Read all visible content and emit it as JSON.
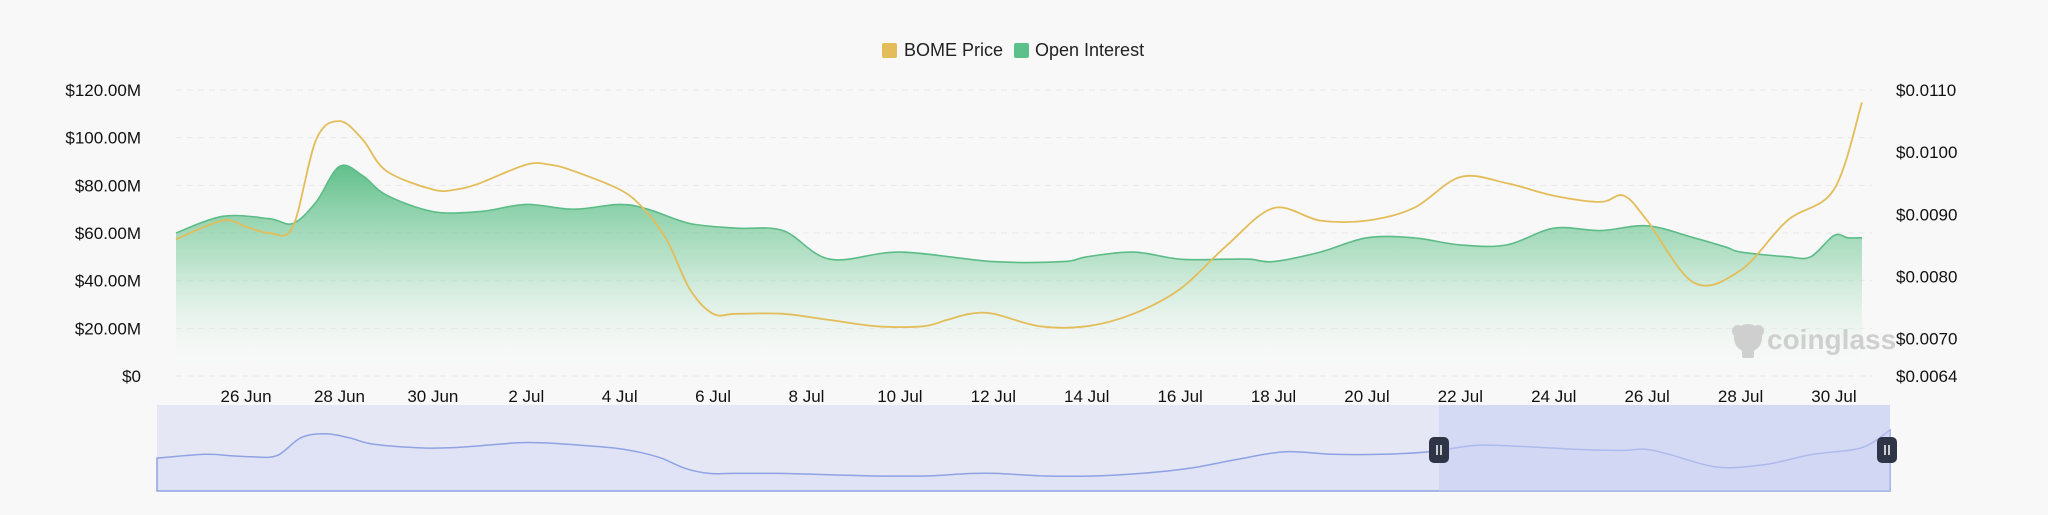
{
  "legend": [
    {
      "label": "BOME Price",
      "color": "#e3bd5a"
    },
    {
      "label": "Open Interest",
      "color": "#5cc08a"
    }
  ],
  "watermark": "coinglass",
  "chart_data": {
    "type": "line",
    "x_ticks": [
      "26 Jun",
      "28 Jun",
      "30 Jun",
      "2 Jul",
      "4 Jul",
      "6 Jul",
      "8 Jul",
      "10 Jul",
      "12 Jul",
      "14 Jul",
      "16 Jul",
      "18 Jul",
      "20 Jul",
      "22 Jul",
      "24 Jul",
      "26 Jul",
      "28 Jul",
      "30 Jul"
    ],
    "y_left_ticks": [
      "$0",
      "$20.00M",
      "$40.00M",
      "$60.00M",
      "$80.00M",
      "$100.00M",
      "$120.00M"
    ],
    "y_left_range": [
      0,
      120
    ],
    "y_left_unit": "M USD",
    "y_right_ticks": [
      "$0.0064",
      "$0.0070",
      "$0.0080",
      "$0.0090",
      "$0.0100",
      "$0.0110"
    ],
    "y_right_range": [
      0.0064,
      0.011
    ],
    "x_range": [
      24.5,
      60.6
    ],
    "grid": true,
    "legend_position": "top-center",
    "series": [
      {
        "name": "Open Interest",
        "axis": "left",
        "style": "area",
        "x": [
          24.5,
          25.5,
          26.5,
          27.0,
          27.5,
          28.0,
          28.5,
          29.0,
          30.0,
          31.0,
          32.0,
          33.0,
          34.0,
          34.6,
          35.5,
          36.5,
          37.5,
          38.5,
          40.0,
          42.0,
          43.5,
          44.0,
          45.0,
          46.0,
          47.0,
          47.5,
          48.0,
          49.0,
          50.0,
          51.0,
          52.0,
          53.0,
          54.0,
          55.0,
          56.0,
          57.0,
          57.7,
          58.0,
          59.0,
          59.5,
          60.0,
          60.3,
          60.6
        ],
        "values": [
          60,
          67,
          66,
          64,
          73,
          88,
          84,
          76,
          69,
          69,
          72,
          70,
          72,
          70,
          64,
          62,
          61,
          49,
          52,
          48,
          48,
          50,
          52,
          49,
          49,
          49,
          48,
          52,
          58,
          58,
          55,
          55,
          62,
          61,
          63,
          58,
          54,
          52,
          50,
          50,
          59,
          58,
          58
        ]
      },
      {
        "name": "BOME Price",
        "axis": "right",
        "style": "line",
        "x": [
          24.5,
          25.5,
          26.0,
          26.5,
          27.0,
          27.5,
          28.0,
          28.5,
          29.0,
          30.0,
          30.5,
          31.0,
          32.0,
          32.5,
          33.0,
          34.0,
          34.5,
          35.0,
          35.5,
          36.0,
          36.5,
          37.5,
          38.5,
          39.5,
          40.5,
          41.0,
          41.5,
          42.0,
          43.0,
          44.0,
          45.0,
          46.0,
          47.0,
          48.0,
          49.0,
          50.0,
          51.0,
          52.0,
          53.0,
          54.0,
          55.0,
          55.5,
          56.0,
          57.0,
          58.0,
          59.0,
          60.0,
          60.6
        ],
        "values": [
          0.0086,
          0.0089,
          0.0088,
          0.0087,
          0.0088,
          0.0102,
          0.0105,
          0.0102,
          0.0097,
          0.0094,
          0.0094,
          0.0095,
          0.0098,
          0.0098,
          0.0097,
          0.0094,
          0.0091,
          0.0086,
          0.0078,
          0.0074,
          0.0074,
          0.0074,
          0.0073,
          0.0072,
          0.0072,
          0.0073,
          0.0074,
          0.0074,
          0.0072,
          0.0072,
          0.0074,
          0.0078,
          0.0085,
          0.0091,
          0.0089,
          0.0089,
          0.0091,
          0.0096,
          0.0095,
          0.0093,
          0.0092,
          0.0093,
          0.0089,
          0.0079,
          0.0081,
          0.0089,
          0.0094,
          0.0108
        ]
      }
    ]
  }
}
